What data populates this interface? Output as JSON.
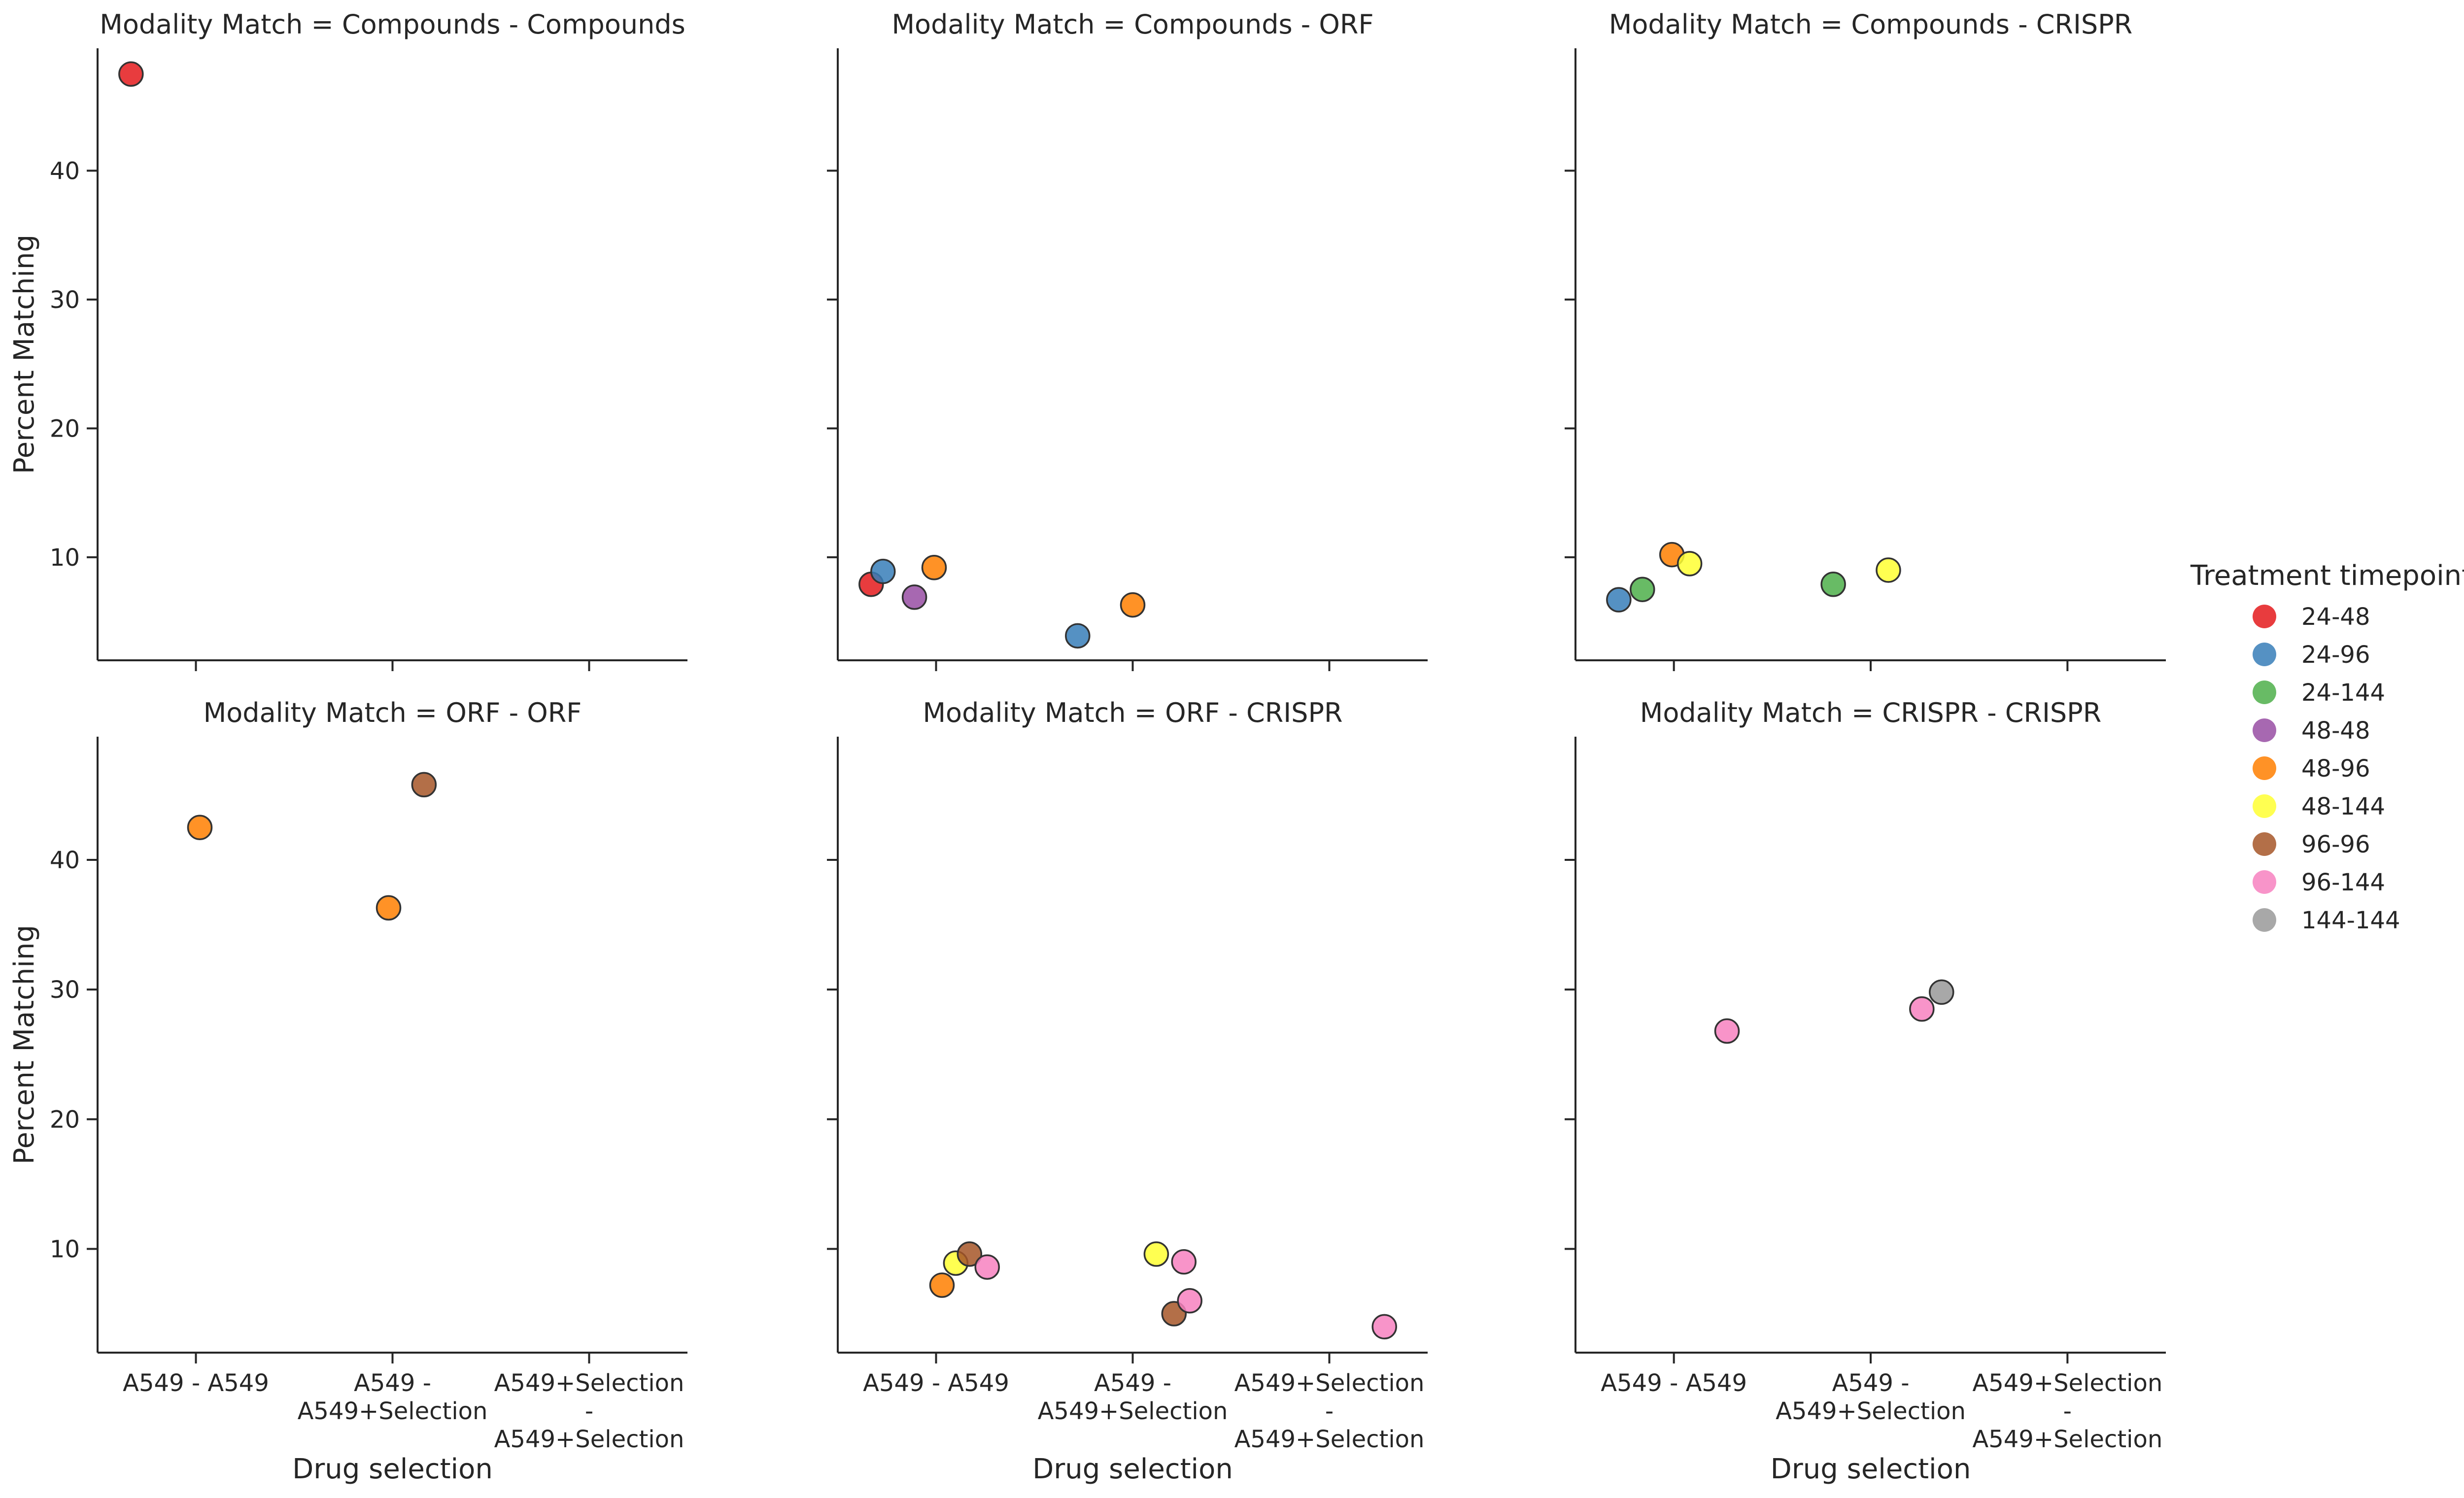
{
  "chart_data": {
    "type": "scatter",
    "facet_by": "Modality Match",
    "xlabel": "Drug selection",
    "ylabel": "Percent Matching",
    "categories": [
      [
        "A549 - A549"
      ],
      [
        "A549 -",
        "A549+Selection"
      ],
      [
        "A549+Selection",
        "-",
        "A549+Selection"
      ]
    ],
    "yticks": [
      10,
      20,
      30,
      40
    ],
    "ylim": [
      2,
      49.5
    ],
    "legend": {
      "title": "Treatment timepoint",
      "placement": "right",
      "entries": [
        {
          "label": "24-48",
          "color": "#e41a1c"
        },
        {
          "label": "24-96",
          "color": "#377eb8"
        },
        {
          "label": "24-144",
          "color": "#4daf4a"
        },
        {
          "label": "48-48",
          "color": "#984ea3"
        },
        {
          "label": "48-96",
          "color": "#ff7f00"
        },
        {
          "label": "48-144",
          "color": "#ffff33"
        },
        {
          "label": "96-96",
          "color": "#a65628"
        },
        {
          "label": "96-144",
          "color": "#f781bf"
        },
        {
          "label": "144-144",
          "color": "#999999"
        }
      ]
    },
    "panels": [
      {
        "title": "Modality Match = Compounds - Compounds",
        "points": [
          {
            "x": -0.33,
            "y": 47.5,
            "timepoint": "24-48"
          }
        ]
      },
      {
        "title": "Modality Match = Compounds - ORF",
        "points": [
          {
            "x": -0.33,
            "y": 7.9,
            "timepoint": "24-48"
          },
          {
            "x": -0.27,
            "y": 8.9,
            "timepoint": "24-96"
          },
          {
            "x": -0.11,
            "y": 6.9,
            "timepoint": "48-48"
          },
          {
            "x": -0.01,
            "y": 9.2,
            "timepoint": "48-96"
          },
          {
            "x": 0.72,
            "y": 3.9,
            "timepoint": "24-96"
          },
          {
            "x": 1.0,
            "y": 6.3,
            "timepoint": "48-96"
          }
        ]
      },
      {
        "title": "Modality Match = Compounds - CRISPR",
        "points": [
          {
            "x": -0.28,
            "y": 6.7,
            "timepoint": "24-96"
          },
          {
            "x": -0.16,
            "y": 7.5,
            "timepoint": "24-144"
          },
          {
            "x": -0.01,
            "y": 10.2,
            "timepoint": "48-96"
          },
          {
            "x": 0.08,
            "y": 9.5,
            "timepoint": "48-144"
          },
          {
            "x": 0.81,
            "y": 7.9,
            "timepoint": "24-144"
          },
          {
            "x": 1.09,
            "y": 9.0,
            "timepoint": "48-144"
          }
        ]
      },
      {
        "title": "Modality Match = ORF - ORF",
        "points": [
          {
            "x": 0.02,
            "y": 42.5,
            "timepoint": "48-96"
          },
          {
            "x": 0.98,
            "y": 36.3,
            "timepoint": "48-96"
          },
          {
            "x": 1.16,
            "y": 45.8,
            "timepoint": "96-96"
          }
        ]
      },
      {
        "title": "Modality Match = ORF - CRISPR",
        "points": [
          {
            "x": 0.03,
            "y": 7.2,
            "timepoint": "48-96"
          },
          {
            "x": 0.1,
            "y": 8.9,
            "timepoint": "48-144"
          },
          {
            "x": 0.17,
            "y": 9.6,
            "timepoint": "96-96"
          },
          {
            "x": 0.26,
            "y": 8.6,
            "timepoint": "96-144"
          },
          {
            "x": 1.12,
            "y": 9.6,
            "timepoint": "48-144"
          },
          {
            "x": 1.21,
            "y": 5.0,
            "timepoint": "96-96"
          },
          {
            "x": 1.26,
            "y": 9.0,
            "timepoint": "96-144"
          },
          {
            "x": 1.29,
            "y": 6.0,
            "timepoint": "96-144"
          },
          {
            "x": 2.28,
            "y": 4.0,
            "timepoint": "96-144"
          }
        ]
      },
      {
        "title": "Modality Match = CRISPR - CRISPR",
        "points": [
          {
            "x": 0.27,
            "y": 26.8,
            "timepoint": "96-144"
          },
          {
            "x": 1.26,
            "y": 28.5,
            "timepoint": "96-144"
          },
          {
            "x": 1.36,
            "y": 29.8,
            "timepoint": "144-144"
          }
        ]
      }
    ]
  }
}
